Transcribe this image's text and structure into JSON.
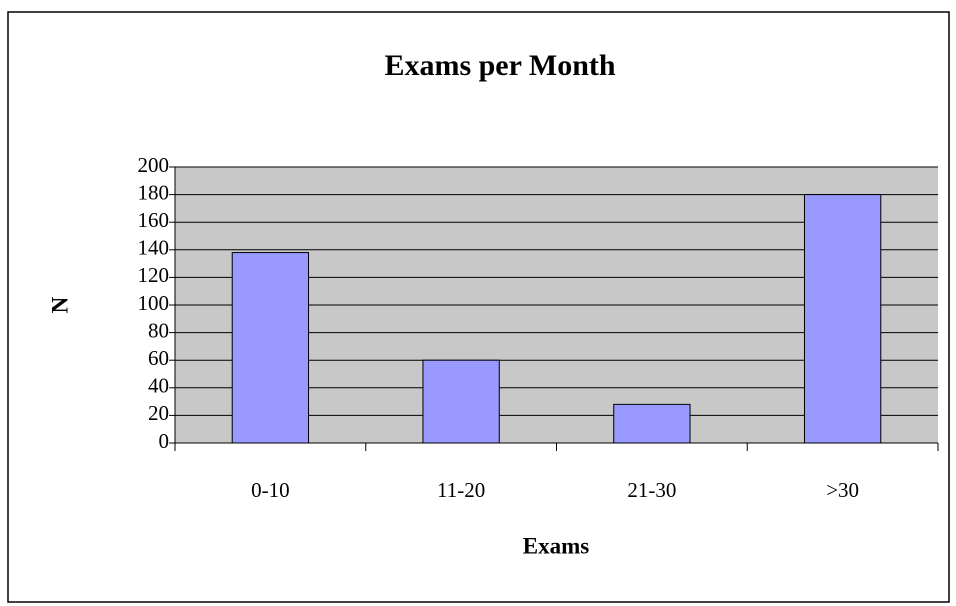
{
  "chart_data": {
    "type": "bar",
    "title": "Exams per Month",
    "x_label": "Exams",
    "y_label": "N",
    "categories": [
      "0-10",
      "11-20",
      "21-30",
      ">30"
    ],
    "values": [
      138,
      60,
      28,
      180
    ],
    "color": "#9999ff",
    "ylim": [
      0,
      200
    ],
    "yticks": [
      0,
      20,
      40,
      60,
      80,
      100,
      120,
      140,
      160,
      180,
      200
    ],
    "grid": true
  }
}
